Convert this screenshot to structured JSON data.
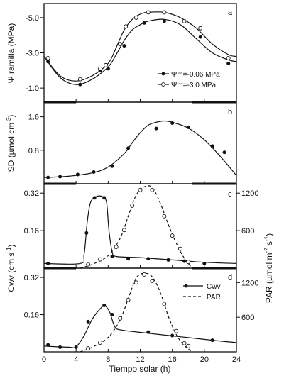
{
  "chart_data": [
    {
      "type": "line",
      "panel": "a",
      "ylabel": "Ψ ramilla (MPa)",
      "ylim": [
        -0.2,
        -5.8
      ],
      "yticks": [
        -1.0,
        -3.0,
        -5.0
      ],
      "ytick_labels": [
        "-1.0",
        "-3.0",
        "-5.0"
      ],
      "xlim": [
        0,
        24
      ],
      "legend_position": "bottom-right",
      "night_bars": [
        [
          0,
          4
        ],
        [
          18.5,
          24
        ]
      ],
      "series": [
        {
          "name": "Ψm=-0.06 MPa",
          "marker": "filled",
          "points": [
            [
              0.5,
              -2.5
            ],
            [
              4.5,
              -1.2
            ],
            [
              7.0,
              -2.0
            ],
            [
              8.0,
              -2.1
            ],
            [
              10.0,
              -3.4
            ],
            [
              12.5,
              -4.7
            ],
            [
              15.0,
              -4.8
            ],
            [
              19.5,
              -3.9
            ],
            [
              23.0,
              -2.4
            ]
          ],
          "curve": [
            [
              0,
              -2.8
            ],
            [
              2,
              -1.6
            ],
            [
              4,
              -1.2
            ],
            [
              6,
              -1.5
            ],
            [
              8,
              -2.2
            ],
            [
              9,
              -2.9
            ],
            [
              10,
              -3.7
            ],
            [
              11,
              -4.3
            ],
            [
              12,
              -4.6
            ],
            [
              13,
              -4.8
            ],
            [
              15,
              -4.9
            ],
            [
              17,
              -4.6
            ],
            [
              19,
              -3.8
            ],
            [
              21,
              -3.0
            ],
            [
              23,
              -2.6
            ],
            [
              24,
              -2.5
            ]
          ]
        },
        {
          "name": "Ψm=-3.0 MPa",
          "marker": "open",
          "points": [
            [
              0.5,
              -2.7
            ],
            [
              4.5,
              -1.5
            ],
            [
              7.0,
              -2.1
            ],
            [
              7.7,
              -2.3
            ],
            [
              9.5,
              -3.5
            ],
            [
              10.2,
              -4.5
            ],
            [
              11.5,
              -5.0
            ],
            [
              13.0,
              -5.3
            ],
            [
              15.0,
              -5.3
            ],
            [
              17.5,
              -4.8
            ],
            [
              19.5,
              -4.4
            ],
            [
              23.0,
              -2.7
            ]
          ],
          "curve": [
            [
              0,
              -2.8
            ],
            [
              2,
              -1.7
            ],
            [
              4,
              -1.4
            ],
            [
              6,
              -1.7
            ],
            [
              8,
              -2.4
            ],
            [
              9,
              -3.3
            ],
            [
              10,
              -4.3
            ],
            [
              11,
              -4.9
            ],
            [
              12,
              -5.2
            ],
            [
              13,
              -5.3
            ],
            [
              15,
              -5.3
            ],
            [
              17,
              -5.0
            ],
            [
              19,
              -4.4
            ],
            [
              21,
              -3.5
            ],
            [
              23,
              -2.9
            ],
            [
              24,
              -2.8
            ]
          ]
        }
      ]
    },
    {
      "type": "scatter",
      "panel": "b",
      "ylabel": "SD (µmol cm-3)",
      "ylim": [
        0.0,
        1.95
      ],
      "yticks": [
        0.8,
        1.6
      ],
      "ytick_labels": [
        "0.8",
        "1.6"
      ],
      "xlim": [
        0,
        24
      ],
      "night_bars": [
        [
          0,
          4
        ],
        [
          18.5,
          24
        ]
      ],
      "points": [
        [
          0.5,
          0.15
        ],
        [
          2.0,
          0.17
        ],
        [
          4.2,
          0.22
        ],
        [
          6.2,
          0.28
        ],
        [
          8.5,
          0.42
        ],
        [
          10.5,
          0.85
        ],
        [
          14.0,
          1.32
        ],
        [
          16.0,
          1.45
        ],
        [
          18.0,
          1.35
        ],
        [
          21.0,
          0.9
        ],
        [
          22.5,
          0.75
        ]
      ],
      "curve": [
        [
          0,
          0.15
        ],
        [
          3,
          0.18
        ],
        [
          6,
          0.26
        ],
        [
          8,
          0.4
        ],
        [
          10,
          0.72
        ],
        [
          11,
          0.98
        ],
        [
          12,
          1.22
        ],
        [
          13,
          1.4
        ],
        [
          14,
          1.47
        ],
        [
          15,
          1.5
        ],
        [
          16,
          1.47
        ],
        [
          18,
          1.33
        ],
        [
          20,
          1.05
        ],
        [
          22,
          0.65
        ],
        [
          24,
          0.2
        ]
      ]
    },
    {
      "type": "line",
      "panel": "c",
      "ylabel": "Cwv (cm s-1)",
      "y2label": "PAR (µmol m-2 s-1)",
      "ylim": [
        0.0,
        0.36
      ],
      "yticks": [
        0.16,
        0.32
      ],
      "ytick_labels": [
        "0.16",
        "0.32"
      ],
      "y2lim": [
        0,
        1350
      ],
      "y2ticks": [
        600,
        1200
      ],
      "y2tick_labels": [
        "600",
        "1200"
      ],
      "xlim": [
        0,
        24
      ],
      "night_bars": [
        [
          0,
          4
        ],
        [
          18.5,
          24
        ]
      ],
      "series": [
        {
          "marker": "filled",
          "axis": "left",
          "points": [
            [
              0.5,
              0.02
            ],
            [
              5.3,
              0.15
            ],
            [
              6.3,
              0.3
            ],
            [
              7.5,
              0.3
            ],
            [
              8.5,
              0.05
            ],
            [
              10.5,
              0.04
            ],
            [
              13.0,
              0.04
            ],
            [
              15.5,
              0.035
            ],
            [
              17.5,
              0.03
            ],
            [
              20.0,
              0.02
            ]
          ],
          "curve": [
            [
              0,
              0.02
            ],
            [
              4.5,
              0.02
            ],
            [
              5,
              0.06
            ],
            [
              5.4,
              0.2
            ],
            [
              5.8,
              0.28
            ],
            [
              6.5,
              0.305
            ],
            [
              7.3,
              0.305
            ],
            [
              7.8,
              0.28
            ],
            [
              8.1,
              0.16
            ],
            [
              8.5,
              0.07
            ],
            [
              9,
              0.05
            ],
            [
              12,
              0.045
            ],
            [
              16,
              0.035
            ],
            [
              20,
              0.025
            ],
            [
              24,
              0.02
            ]
          ]
        },
        {
          "marker": "open",
          "axis": "right",
          "style": "dashed",
          "points": [
            [
              5.5,
              60
            ],
            [
              7.0,
              140
            ],
            [
              9.0,
              340
            ],
            [
              10.0,
              610
            ],
            [
              11.0,
              1000
            ],
            [
              12.0,
              1250
            ],
            [
              13.5,
              1250
            ],
            [
              15.0,
              830
            ],
            [
              16.0,
              520
            ],
            [
              17.0,
              310
            ],
            [
              18.0,
              100
            ]
          ],
          "curve": [
            [
              4.5,
              0
            ],
            [
              6,
              60
            ],
            [
              8,
              200
            ],
            [
              9.5,
              480
            ],
            [
              10.5,
              830
            ],
            [
              11.5,
              1170
            ],
            [
              12.5,
              1300
            ],
            [
              13.5,
              1290
            ],
            [
              14.5,
              1040
            ],
            [
              15.5,
              700
            ],
            [
              16.5,
              400
            ],
            [
              17.5,
              160
            ],
            [
              18.5,
              0
            ]
          ]
        }
      ]
    },
    {
      "type": "line",
      "panel": "d",
      "ylim": [
        0.0,
        0.36
      ],
      "yticks": [
        0.16,
        0.32
      ],
      "ytick_labels": [
        "0.16",
        "0.32"
      ],
      "y2lim": [
        0,
        1450
      ],
      "y2ticks": [
        600,
        1200
      ],
      "y2tick_labels": [
        "600",
        "1200"
      ],
      "xlim": [
        0,
        24
      ],
      "xlabel": "Tiempo solar (h)",
      "xticks": [
        0,
        4,
        8,
        12,
        16,
        20,
        24
      ],
      "legend_position": "top-right",
      "night_bars": [],
      "series": [
        {
          "name": "Cwv",
          "marker": "filled",
          "axis": "left",
          "points": [
            [
              0.5,
              0.03
            ],
            [
              2.0,
              0.02
            ],
            [
              4.0,
              0.02
            ],
            [
              5.5,
              0.13
            ],
            [
              7.5,
              0.2
            ],
            [
              8.5,
              0.16
            ],
            [
              13.0,
              0.085
            ],
            [
              16.0,
              0.07
            ],
            [
              21.0,
              0.05
            ]
          ],
          "curve": [
            [
              0,
              0.025
            ],
            [
              3,
              0.02
            ],
            [
              4,
              0.022
            ],
            [
              5,
              0.07
            ],
            [
              6,
              0.14
            ],
            [
              7,
              0.185
            ],
            [
              7.6,
              0.198
            ],
            [
              8.2,
              0.17
            ],
            [
              8.8,
              0.11
            ],
            [
              9.5,
              0.095
            ],
            [
              13,
              0.08
            ],
            [
              17,
              0.065
            ],
            [
              21,
              0.05
            ],
            [
              24,
              0.04
            ]
          ]
        },
        {
          "name": "PAR",
          "marker": "open",
          "axis": "right",
          "style": "dashed",
          "points": [
            [
              5.5,
              60
            ],
            [
              7.0,
              160
            ],
            [
              9.5,
              580
            ],
            [
              10.5,
              900
            ],
            [
              11.5,
              1200
            ],
            [
              12.5,
              1340
            ],
            [
              13.5,
              1230
            ],
            [
              15.0,
              830
            ],
            [
              16.5,
              360
            ],
            [
              17.5,
              150
            ],
            [
              18.0,
              100
            ]
          ],
          "curve": [
            [
              4.5,
              0
            ],
            [
              6,
              80
            ],
            [
              8,
              250
            ],
            [
              9.5,
              560
            ],
            [
              10.5,
              920
            ],
            [
              11.5,
              1280
            ],
            [
              12.5,
              1360
            ],
            [
              13.5,
              1300
            ],
            [
              14.5,
              1030
            ],
            [
              15.5,
              620
            ],
            [
              16.5,
              300
            ],
            [
              17.5,
              110
            ],
            [
              18.5,
              0
            ]
          ]
        }
      ]
    }
  ],
  "panel_letters": [
    "a",
    "b",
    "c",
    "d"
  ],
  "labels": {
    "ylabel_a": "Ψ ramilla (MPa)",
    "ylabel_b": "SD (µmol cm",
    "ylabel_b_sup": "-3",
    "ylabel_b_end": ")",
    "ylabel_cd": "Cwv (cm s",
    "ylabel_cd_sup": "-1",
    "ylabel_cd_end": ")",
    "y2label_cd": "PAR (µmol m",
    "y2label_cd_sup1": "-2",
    "y2label_cd_mid": " s",
    "y2label_cd_sup2": "-1",
    "y2label_cd_end": ")",
    "xlabel": "Tiempo solar (h)",
    "legend_a_1": "Ψm=-0.06 MPa",
    "legend_a_2": "Ψm=-3.0  MPa",
    "legend_d_1": "Cwv",
    "legend_d_2": "PAR"
  }
}
